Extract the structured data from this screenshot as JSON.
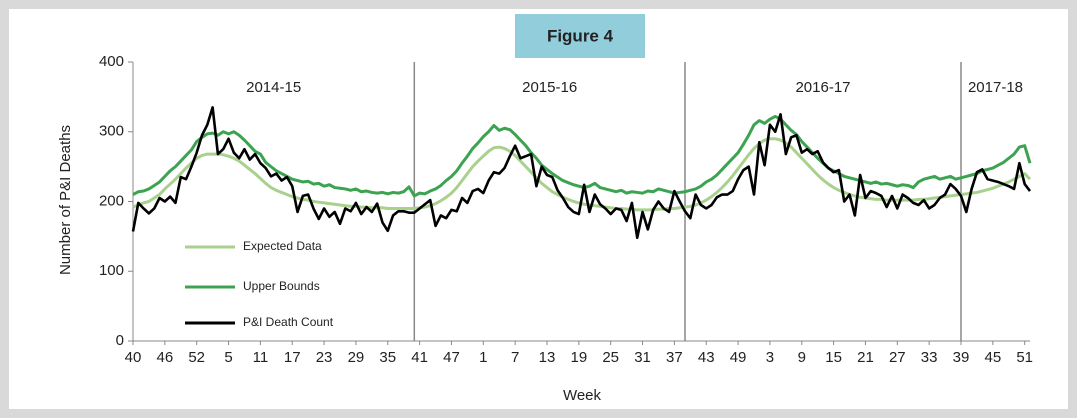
{
  "chart_data": {
    "type": "line",
    "title": "Figure 4",
    "y_label": "Number of P&I Deaths",
    "x_label": "Week",
    "categories": [
      40,
      null,
      null,
      null,
      null,
      null,
      46,
      null,
      null,
      null,
      null,
      null,
      52,
      null,
      null,
      null,
      null,
      null,
      5,
      null,
      null,
      null,
      null,
      null,
      11,
      null,
      null,
      null,
      null,
      null,
      17,
      null,
      null,
      null,
      null,
      null,
      23,
      null,
      null,
      null,
      null,
      null,
      29,
      null,
      null,
      null,
      null,
      null,
      35,
      null,
      null,
      null,
      null,
      null,
      41,
      null,
      null,
      null,
      null,
      null,
      47,
      null,
      null,
      null,
      null,
      null,
      1,
      null,
      null,
      null,
      null,
      null,
      7,
      null,
      null,
      null,
      null,
      null,
      13,
      null,
      null,
      null,
      null,
      null,
      19,
      null,
      null,
      null,
      null,
      null,
      25,
      null,
      null,
      null,
      null,
      null,
      31,
      null,
      null,
      null,
      null,
      null,
      37,
      null,
      null,
      null,
      null,
      null,
      43,
      null,
      null,
      null,
      null,
      null,
      49,
      null,
      null,
      null,
      null,
      null,
      3,
      null,
      null,
      null,
      null,
      null,
      9,
      null,
      null,
      null,
      null,
      null,
      15,
      null,
      null,
      null,
      null,
      null,
      21,
      null,
      null,
      null,
      null,
      null,
      27,
      null,
      null,
      null,
      null,
      null,
      33,
      null,
      null,
      null,
      null,
      null,
      39,
      null,
      null,
      null,
      null,
      null,
      45,
      null,
      null,
      null,
      null,
      null,
      51,
      null
    ],
    "seasons": [
      {
        "label": "2014-15",
        "start": 0
      },
      {
        "label": "2015-16",
        "start": 53
      },
      {
        "label": "2016-17",
        "start": 104
      },
      {
        "label": "2017-18",
        "start": 156
      }
    ],
    "series": [
      {
        "name": "Expected Data",
        "color": "#a9d18e",
        "values": [
          192,
          195,
          198,
          200,
          205,
          210,
          218,
          225,
          232,
          240,
          248,
          255,
          262,
          266,
          268,
          268,
          268,
          267,
          265,
          262,
          258,
          252,
          246,
          240,
          233,
          226,
          220,
          216,
          213,
          210,
          207,
          205,
          203,
          202,
          200,
          199,
          198,
          197,
          196,
          195,
          194,
          193,
          193,
          192,
          192,
          191,
          191,
          191,
          190,
          190,
          190,
          190,
          190,
          190,
          191,
          192,
          194,
          197,
          201,
          206,
          212,
          220,
          230,
          240,
          250,
          258,
          265,
          272,
          277,
          278,
          276,
          272,
          266,
          258,
          250,
          242,
          234,
          226,
          220,
          214,
          210,
          206,
          203,
          200,
          198,
          196,
          195,
          194,
          193,
          192,
          191,
          190,
          190,
          189,
          189,
          188,
          188,
          188,
          188,
          189,
          189,
          190,
          190,
          191,
          192,
          193,
          195,
          198,
          202,
          207,
          213,
          220,
          228,
          237,
          247,
          257,
          267,
          276,
          283,
          288,
          290,
          290,
          288,
          284,
          278,
          270,
          262,
          254,
          246,
          238,
          231,
          225,
          220,
          216,
          213,
          210,
          208,
          206,
          205,
          204,
          203,
          203,
          202,
          202,
          202,
          202,
          202,
          202,
          203,
          203,
          204,
          205,
          206,
          207,
          208,
          209,
          210,
          211,
          212,
          213,
          215,
          217,
          219,
          222,
          225,
          228,
          232,
          236,
          240,
          232
        ]
      },
      {
        "name": "Upper Bounds",
        "color": "#3ca351",
        "values": [
          210,
          214,
          215,
          218,
          223,
          228,
          236,
          244,
          250,
          258,
          266,
          274,
          286,
          292,
          297,
          298,
          295,
          300,
          297,
          300,
          295,
          288,
          280,
          272,
          268,
          256,
          250,
          244,
          240,
          236,
          232,
          230,
          228,
          229,
          225,
          226,
          222,
          224,
          220,
          219,
          218,
          216,
          218,
          214,
          215,
          213,
          212,
          213,
          211,
          213,
          212,
          214,
          221,
          208,
          212,
          211,
          215,
          218,
          223,
          230,
          236,
          244,
          255,
          265,
          276,
          284,
          293,
          300,
          309,
          302,
          305,
          303,
          296,
          288,
          280,
          270,
          262,
          252,
          246,
          240,
          235,
          230,
          227,
          224,
          222,
          220,
          222,
          226,
          220,
          218,
          216,
          214,
          216,
          212,
          214,
          213,
          212,
          215,
          214,
          218,
          216,
          214,
          212,
          213,
          214,
          216,
          218,
          222,
          228,
          232,
          238,
          246,
          254,
          262,
          270,
          282,
          295,
          310,
          316,
          312,
          318,
          322,
          318,
          310,
          302,
          296,
          286,
          278,
          270,
          262,
          255,
          248,
          244,
          240,
          236,
          234,
          232,
          230,
          228,
          226,
          228,
          225,
          226,
          224,
          222,
          224,
          223,
          220,
          228,
          232,
          234,
          236,
          232,
          234,
          236,
          232,
          234,
          236,
          238,
          240,
          244,
          246,
          248,
          252,
          256,
          262,
          268,
          278,
          280,
          255
        ]
      },
      {
        "name": "P&I Death Count",
        "color": "#000000",
        "values": [
          157,
          198,
          190,
          183,
          190,
          205,
          200,
          207,
          198,
          235,
          232,
          250,
          270,
          295,
          310,
          335,
          268,
          275,
          290,
          270,
          262,
          275,
          260,
          268,
          255,
          248,
          236,
          240,
          230,
          235,
          222,
          185,
          208,
          210,
          190,
          175,
          190,
          178,
          185,
          168,
          190,
          186,
          198,
          182,
          192,
          185,
          197,
          170,
          158,
          180,
          186,
          186,
          184,
          184,
          190,
          196,
          202,
          165,
          180,
          176,
          188,
          186,
          205,
          198,
          215,
          218,
          212,
          230,
          242,
          240,
          248,
          265,
          280,
          262,
          265,
          268,
          222,
          250,
          238,
          235,
          216,
          205,
          192,
          185,
          182,
          224,
          185,
          210,
          196,
          190,
          182,
          190,
          188,
          172,
          198,
          148,
          185,
          160,
          188,
          200,
          190,
          185,
          215,
          200,
          186,
          176,
          210,
          195,
          190,
          195,
          206,
          210,
          210,
          215,
          232,
          245,
          250,
          210,
          285,
          252,
          310,
          300,
          325,
          268,
          292,
          295,
          270,
          275,
          268,
          272,
          256,
          248,
          242,
          245,
          200,
          210,
          180,
          238,
          205,
          215,
          212,
          208,
          192,
          208,
          190,
          210,
          205,
          198,
          195,
          202,
          190,
          195,
          205,
          210,
          225,
          218,
          208,
          185,
          218,
          242,
          246,
          232,
          230,
          228,
          225,
          222,
          218,
          255,
          225,
          215
        ]
      }
    ],
    "ylim": [
      0,
      400
    ],
    "yticks": [
      0,
      100,
      200,
      300,
      400
    ],
    "legend": "lower-left"
  }
}
